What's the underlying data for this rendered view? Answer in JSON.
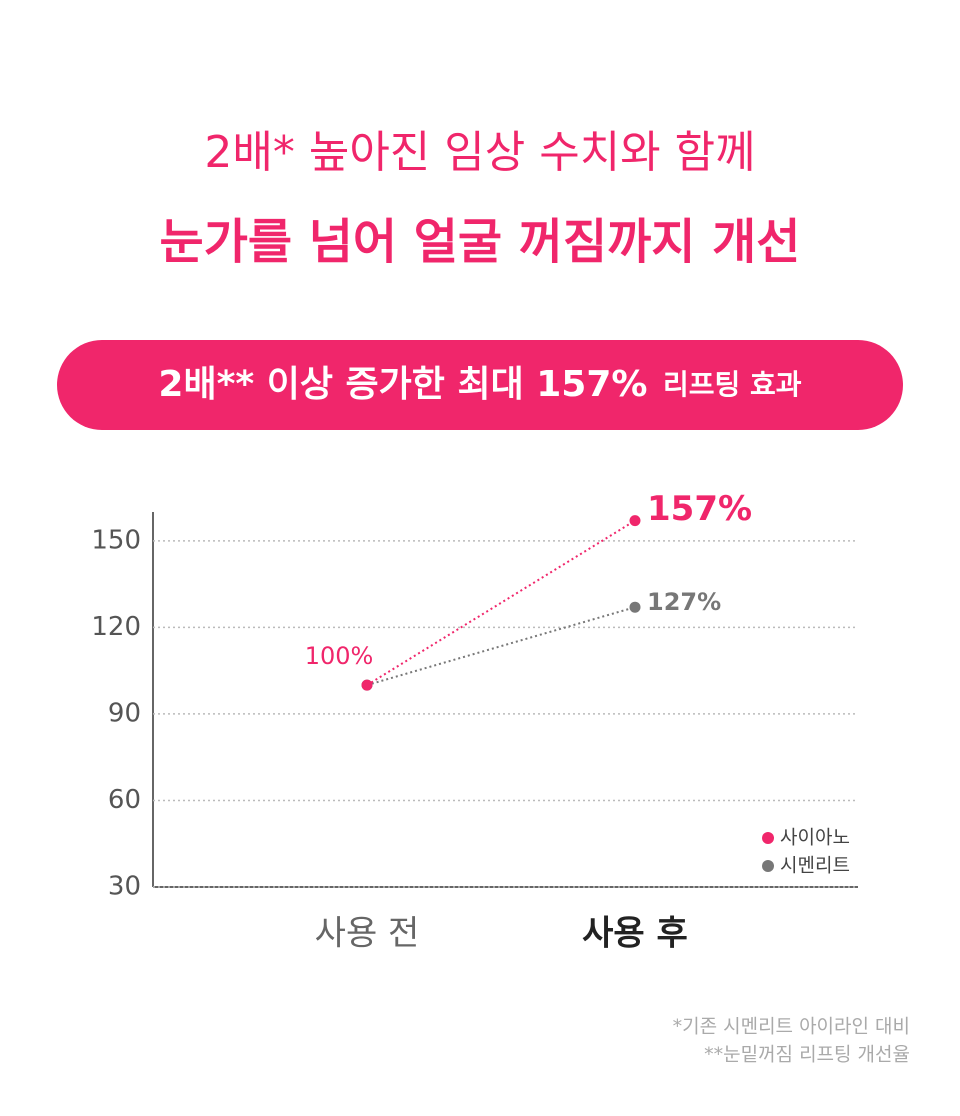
{
  "header": {
    "line1": "2배* 높아진 임상 수치와 함께",
    "line2": "눈가를 넘어 얼굴 꺼짐까지 개선"
  },
  "banner": {
    "main": "2배** 이상 증가한 최대 157%",
    "tail": "리프팅 효과"
  },
  "chart_data": {
    "type": "line",
    "categories": [
      "사용 전",
      "사용 후"
    ],
    "series": [
      {
        "name": "사이아노",
        "color": "#f0266b",
        "values": [
          100,
          157
        ],
        "value_labels": [
          "100%",
          "157%"
        ]
      },
      {
        "name": "시멘리트",
        "color": "#777777",
        "values": [
          100,
          127
        ],
        "value_labels": [
          null,
          "127%"
        ]
      }
    ],
    "ylim": [
      30,
      160
    ],
    "yticks": [
      30,
      60,
      90,
      120,
      150
    ],
    "grid": true,
    "legend": "lower right"
  },
  "footnotes": [
    "*기존 시멘리트 아이라인 대비",
    "**눈밑꺼짐 리프팅 개선율"
  ]
}
